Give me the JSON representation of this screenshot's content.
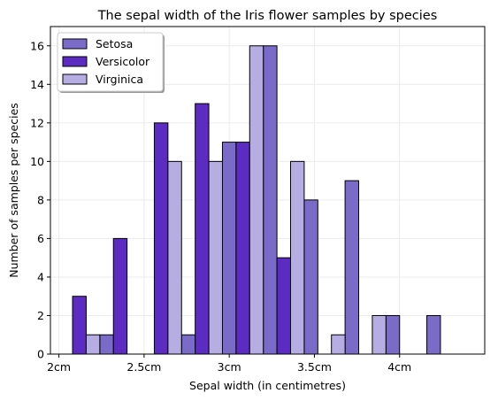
{
  "chart_data": {
    "type": "bar",
    "title": "The sepal width of the Iris flower samples by species",
    "xlabel": "Sepal width (in centimetres)",
    "ylabel": "Number of samples per species",
    "x_tick_values": [
      2.0,
      2.5,
      3.0,
      3.5,
      4.0
    ],
    "x_tick_labels": [
      "2cm",
      "2.5cm",
      "3cm",
      "3.5cm",
      "4cm"
    ],
    "y_ticks": [
      0,
      2,
      4,
      6,
      8,
      10,
      12,
      14,
      16
    ],
    "xlim": [
      1.95,
      4.5
    ],
    "ylim": [
      0,
      17
    ],
    "grid": true,
    "legend_position": "top-left",
    "bin_start": 2.0,
    "bin_width": 0.24,
    "series": [
      {
        "name": "Setosa",
        "color": "#7b6bc9",
        "values": [
          0,
          1,
          0,
          1,
          11,
          16,
          8,
          9,
          2,
          2
        ]
      },
      {
        "name": "Versicolor",
        "color": "#5c2bc2",
        "values": [
          3,
          6,
          12,
          13,
          11,
          5,
          0,
          0,
          0,
          0
        ]
      },
      {
        "name": "Virginica",
        "color": "#b6ade3",
        "values": [
          1,
          0,
          10,
          10,
          16,
          10,
          1,
          2,
          0,
          0
        ]
      }
    ]
  }
}
